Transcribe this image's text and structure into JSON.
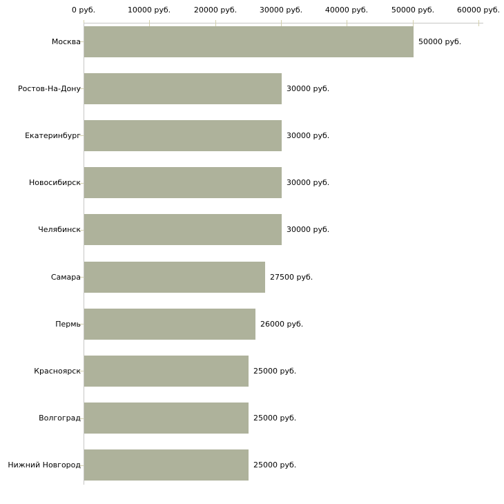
{
  "chart_data": {
    "type": "bar",
    "orientation": "horizontal",
    "title": "",
    "xlabel": "",
    "ylabel": "",
    "unit": "руб.",
    "xlim": [
      0,
      60000
    ],
    "grid": false,
    "legend": "none",
    "categories": [
      "Москва",
      "Ростов-На-Дону",
      "Екатеринбург",
      "Новосибирск",
      "Челябинск",
      "Самара",
      "Пермь",
      "Красноярск",
      "Волгоград",
      "Нижний Новгород"
    ],
    "values": [
      50000,
      30000,
      30000,
      30000,
      30000,
      27500,
      26000,
      25000,
      25000,
      25000
    ],
    "value_labels": [
      "50000 руб.",
      "30000 руб.",
      "30000 руб.",
      "30000 руб.",
      "30000 руб.",
      "27500 руб.",
      "26000 руб.",
      "25000 руб.",
      "25000 руб.",
      "25000 руб."
    ],
    "x_ticks": [
      {
        "value": 0,
        "label": "0 руб."
      },
      {
        "value": 10000,
        "label": "10000 руб."
      },
      {
        "value": 20000,
        "label": "20000 руб."
      },
      {
        "value": 30000,
        "label": "30000 руб."
      },
      {
        "value": 40000,
        "label": "40000 руб."
      },
      {
        "value": 50000,
        "label": "50000 руб."
      },
      {
        "value": 60000,
        "label": "60000 руб."
      }
    ],
    "colors": {
      "bar": "#aeb29b",
      "axis_line": "#c6c6c4",
      "tick": "#d2cfac",
      "text": "#000000",
      "background": "#ffffff"
    }
  }
}
